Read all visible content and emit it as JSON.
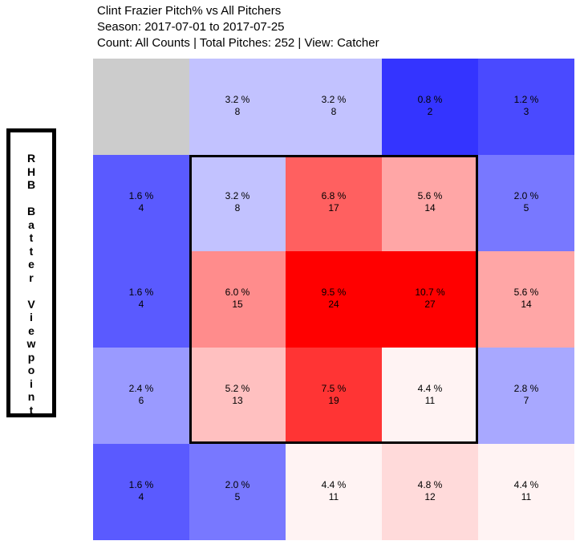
{
  "title": {
    "line1": "Clint Frazier Pitch% vs All Pitchers",
    "line2": "Season: 2017-07-01 to 2017-07-25",
    "line3": "Count: All Counts | Total Pitches: 252 | View: Catcher"
  },
  "side_label": "RHB Batter Viewpoint",
  "chart_data": {
    "type": "heatmap",
    "rows": 5,
    "cols": 5,
    "strike_zone": {
      "row_start": 1,
      "row_end": 3,
      "col_start": 1,
      "col_end": 3
    },
    "empty_color": "#cccccc",
    "colors": [
      [
        null,
        "#c2c2ff",
        "#c2c2ff",
        "#3434ff",
        "#4a4aff"
      ],
      [
        "#5a5aff",
        "#c2c2ff",
        "#ff6060",
        "#ffa6a6",
        "#7878ff"
      ],
      [
        "#5a5aff",
        "#ff8c8c",
        "#ff0000",
        "#ff0000",
        "#ffa6a6"
      ],
      [
        "#9a9aff",
        "#ffc0c0",
        "#ff3434",
        "#fff3f3",
        "#a8a8ff"
      ],
      [
        "#5a5aff",
        "#7878ff",
        "#fff3f3",
        "#ffdada",
        "#fff3f3"
      ]
    ],
    "percent": [
      [
        null,
        "3.2 %",
        "3.2 %",
        "0.8 %",
        "1.2 %"
      ],
      [
        "1.6 %",
        "3.2 %",
        "6.8 %",
        "5.6 %",
        "2.0 %"
      ],
      [
        "1.6 %",
        "6.0 %",
        "9.5 %",
        "10.7 %",
        "5.6 %"
      ],
      [
        "2.4 %",
        "5.2 %",
        "7.5 %",
        "4.4 %",
        "2.8 %"
      ],
      [
        "1.6 %",
        "2.0 %",
        "4.4 %",
        "4.8 %",
        "4.4 %"
      ]
    ],
    "counts": [
      [
        null,
        "8",
        "8",
        "2",
        "3"
      ],
      [
        "4",
        "8",
        "17",
        "14",
        "5"
      ],
      [
        "4",
        "15",
        "24",
        "27",
        "14"
      ],
      [
        "6",
        "13",
        "19",
        "11",
        "7"
      ],
      [
        "4",
        "5",
        "11",
        "12",
        "11"
      ]
    ]
  }
}
